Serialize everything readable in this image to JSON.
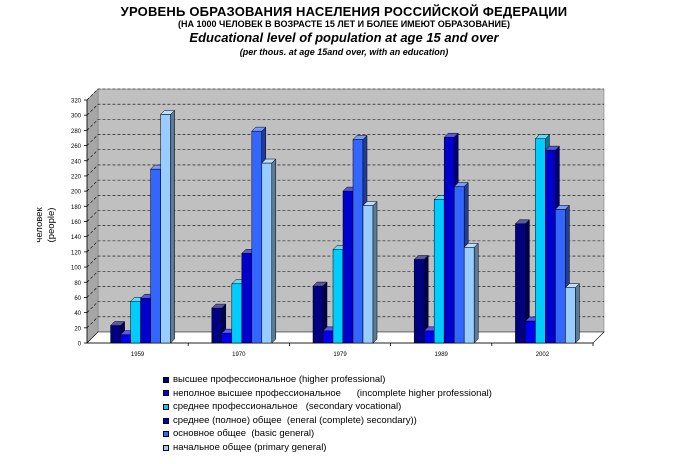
{
  "title": {
    "ru_main": "УРОВЕНЬ ОБРАЗОВАНИЯ НАСЕЛЕНИЯ РОССИЙСКОЙ ФЕДЕРАЦИИ",
    "ru_sub": "(НА 1000 ЧЕЛОВЕК В ВОЗРАСТЕ 15 ЛЕТ И БОЛЕЕ ИМЕЮТ ОБРАЗОВАНИЕ)",
    "en_main": "Educational level of population at age 15 and over",
    "en_sub": "(per thous.  at age 15and over, with an education)"
  },
  "chart_data": {
    "type": "bar",
    "ylabel_ru": "человек",
    "ylabel_en": "(people)",
    "ylim": [
      0,
      320
    ],
    "ytick_step": 20,
    "grid": true,
    "legend_placement": "bottom",
    "categories": [
      "1959",
      "1970",
      "1979",
      "1989",
      "2002"
    ],
    "series": [
      {
        "name": "высшее профессиональное (higher professional)",
        "color": "#000080",
        "values": [
          23,
          46,
          75,
          110,
          157
        ]
      },
      {
        "name": "неполное высшее профессиональное      (incomplete higher professional)",
        "color": "#0000ee",
        "values": [
          11,
          13,
          16,
          16,
          29
        ]
      },
      {
        "name": "среднее профессиональное   (secondary vocational)",
        "color": "#00ccff",
        "values": [
          55,
          78,
          123,
          189,
          269
        ]
      },
      {
        "name": "среднее (полное) общее  (eneral (complete) secondary))",
        "color": "#0000cc",
        "values": [
          59,
          118,
          200,
          271,
          254
        ]
      },
      {
        "name": "основное общее  (basic general)",
        "color": "#3366ff",
        "values": [
          229,
          279,
          268,
          206,
          176
        ]
      },
      {
        "name": "начальное общее (primary general)",
        "color": "#99ccff",
        "values": [
          301,
          237,
          181,
          126,
          73
        ]
      }
    ]
  }
}
